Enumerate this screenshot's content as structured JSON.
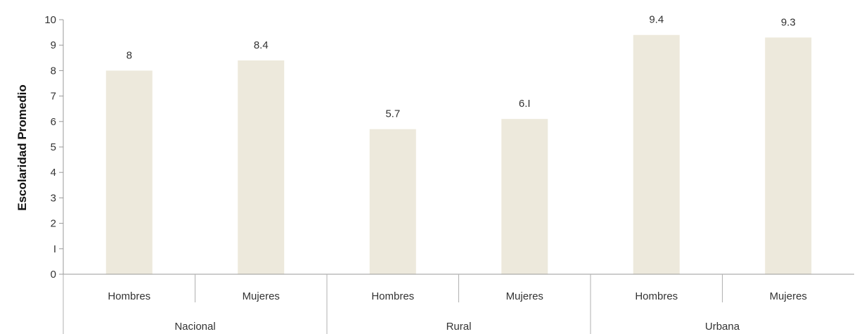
{
  "chart_data": {
    "type": "bar",
    "ylabel": "Escolaridad Promedio",
    "xlabel": "",
    "ylim": [
      0,
      10
    ],
    "yticks": [
      "0",
      "I",
      "2",
      "3",
      "4",
      "5",
      "6",
      "7",
      "8",
      "9",
      "10"
    ],
    "grid": false,
    "legend": "none",
    "bar_color": "#ede9dc",
    "groups": [
      {
        "name": "Nacional",
        "categories": [
          "Hombres",
          "Mujeres"
        ],
        "values": [
          8,
          8.4
        ],
        "labels": [
          "8",
          "8.4"
        ]
      },
      {
        "name": "Rural",
        "categories": [
          "Hombres",
          "Mujeres"
        ],
        "values": [
          5.7,
          6.1
        ],
        "labels": [
          "5.7",
          "6.I"
        ]
      },
      {
        "name": "Urbana",
        "categories": [
          "Hombres",
          "Mujeres"
        ],
        "values": [
          9.4,
          9.3
        ],
        "labels": [
          "9.4",
          "9.3"
        ]
      }
    ]
  }
}
